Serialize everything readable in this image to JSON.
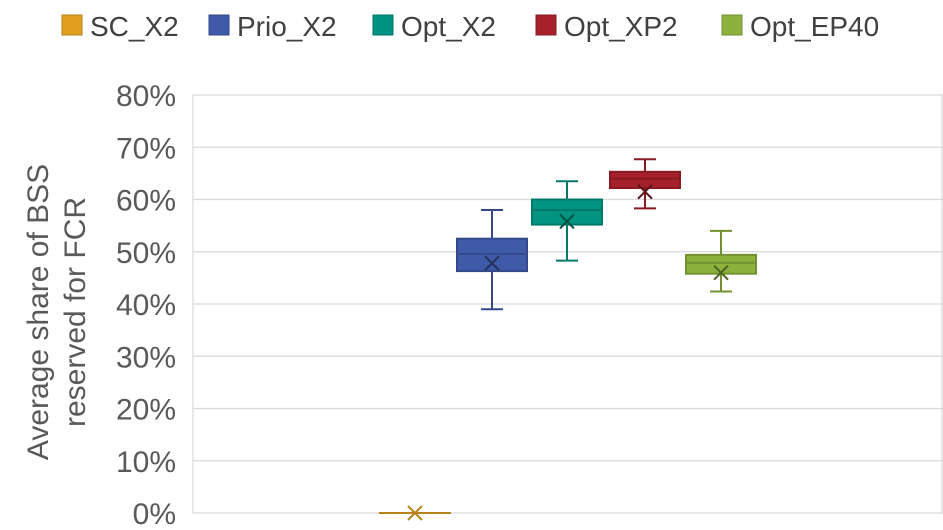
{
  "chart_data": {
    "type": "box",
    "title": "",
    "ylabel_lines": [
      "Average share of BSS",
      "reserved for FCR"
    ],
    "xlabel": "",
    "ylim": [
      0,
      80
    ],
    "yticks": [
      0,
      10,
      20,
      30,
      40,
      50,
      60,
      70,
      80
    ],
    "ytick_labels": [
      "0%",
      "10%",
      "20%",
      "30%",
      "40%",
      "50%",
      "60%",
      "70%",
      "80%"
    ],
    "grid": "horizontal",
    "legend_position": "top",
    "series": [
      {
        "name": "SC_X2",
        "color": "#E0A01E",
        "min": 0,
        "q1": 0,
        "median": 0,
        "q3": 0,
        "max": 0,
        "mean": 0
      },
      {
        "name": "Prio_X2",
        "color": "#3F5AA8",
        "min": 39,
        "q1": 46.3,
        "median": 49.6,
        "q3": 52.5,
        "max": 58,
        "mean": 47.8
      },
      {
        "name": "Opt_X2",
        "color": "#009480",
        "min": 48.3,
        "q1": 55.2,
        "median": 58,
        "q3": 60,
        "max": 63.5,
        "mean": 55.8
      },
      {
        "name": "Opt_XP2",
        "color": "#A6212A",
        "min": 58.3,
        "q1": 62.2,
        "median": 64,
        "q3": 65.3,
        "max": 67.7,
        "mean": 61.5
      },
      {
        "name": "Opt_EP40",
        "color": "#8DB13D",
        "min": 42.4,
        "q1": 45.8,
        "median": 47.9,
        "q3": 49.4,
        "max": 54,
        "mean": 46
      }
    ]
  }
}
